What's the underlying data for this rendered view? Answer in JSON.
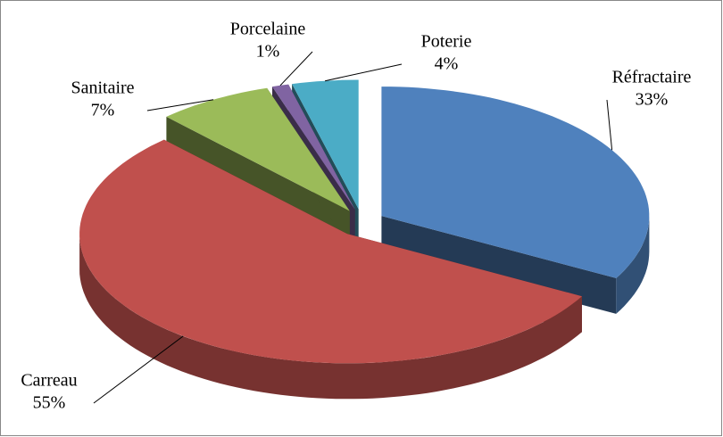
{
  "chart_data": {
    "type": "pie",
    "categories": [
      "Réfractaire",
      "Carreau",
      "Sanitaire",
      "Porcelaine",
      "Poterie"
    ],
    "values": [
      33,
      55,
      7,
      1,
      4
    ],
    "value_labels": [
      "33%",
      "55%",
      "7%",
      "1%",
      "4%"
    ],
    "colors": [
      "#4f81bd",
      "#c0504d",
      "#9bbb59",
      "#8064a2",
      "#4bacc6"
    ],
    "exploded": true,
    "three_d": true
  }
}
